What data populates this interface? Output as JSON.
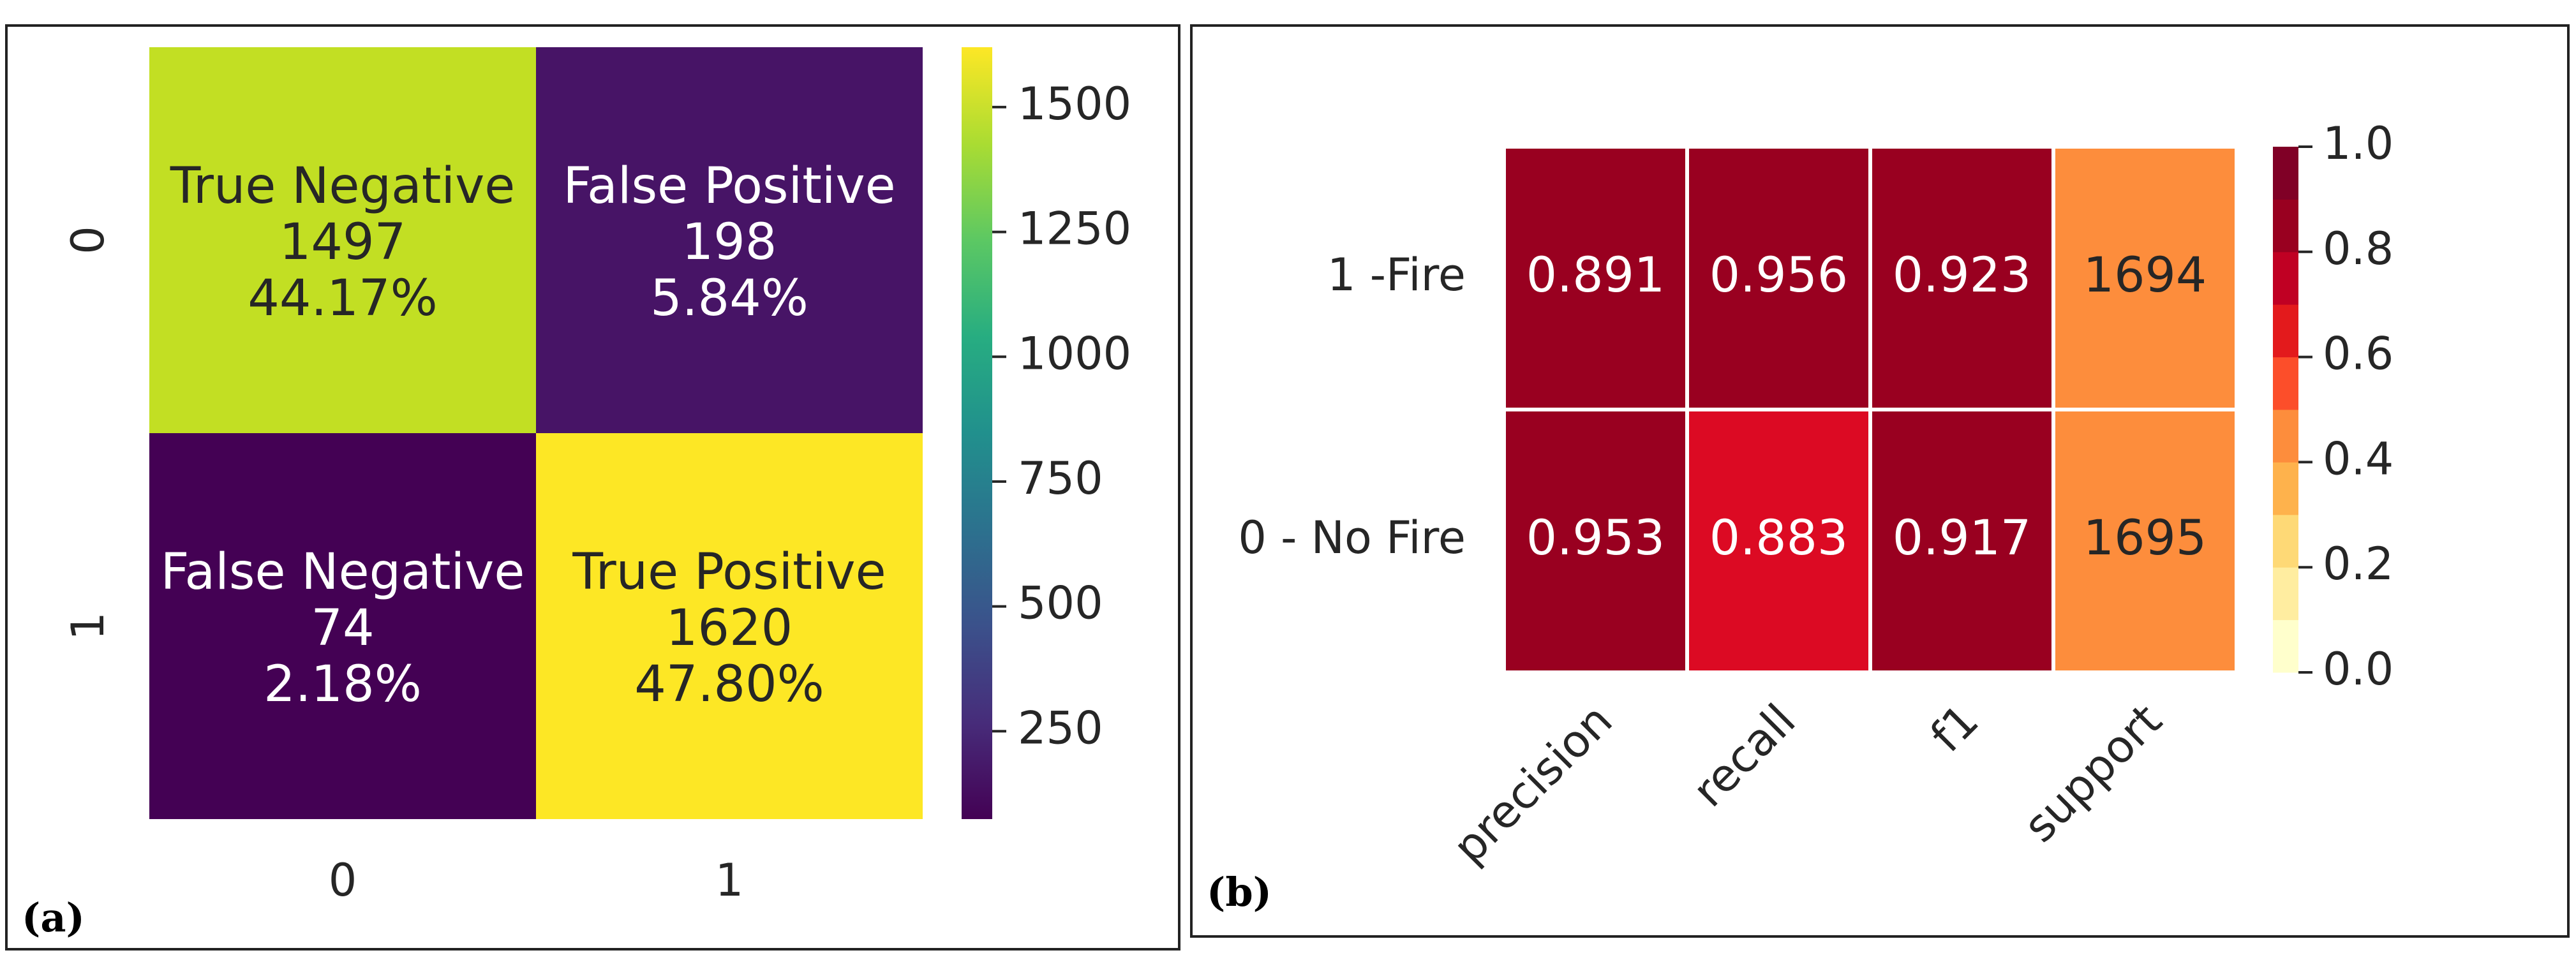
{
  "chart_data": [
    {
      "panel_label": "(a)",
      "type": "heatmap",
      "title": "",
      "x_tick_labels": [
        "0",
        "1"
      ],
      "y_tick_labels": [
        "0",
        "1"
      ],
      "cells": [
        {
          "row": 0,
          "col": 0,
          "name": "True Negative",
          "value": 1497,
          "value_text": "1497",
          "percent": "44.17%",
          "color": "#c2df23",
          "text_color": "#262626"
        },
        {
          "row": 0,
          "col": 1,
          "name": "False Positive",
          "value": 198,
          "value_text": "198",
          "percent": "5.84%",
          "color": "#471466",
          "text_color": "#ffffff"
        },
        {
          "row": 1,
          "col": 0,
          "name": "False Negative",
          "value": 74,
          "value_text": "74",
          "percent": "2.18%",
          "color": "#440154",
          "text_color": "#ffffff"
        },
        {
          "row": 1,
          "col": 1,
          "name": "True Positive",
          "value": 1620,
          "value_text": "1620",
          "percent": "47.80%",
          "color": "#fde725",
          "text_color": "#262626"
        }
      ],
      "colorbar": {
        "colormap": "viridis",
        "range": [
          74,
          1620
        ],
        "ticks": [
          250,
          500,
          750,
          1000,
          1250,
          1500
        ],
        "tick_labels": [
          "250",
          "500",
          "750",
          "1000",
          "1250",
          "1500"
        ]
      }
    },
    {
      "panel_label": "(b)",
      "type": "heatmap",
      "title": "",
      "x_tick_labels": [
        "precision",
        "recall",
        "f1",
        "support"
      ],
      "y_tick_labels": [
        "1 -Fire",
        "0 - No Fire"
      ],
      "cells": [
        {
          "row": 0,
          "col": 0,
          "value": 0.891,
          "value_text": "0.891",
          "color": "#990020",
          "text_color": "#ffffff"
        },
        {
          "row": 0,
          "col": 1,
          "value": 0.956,
          "value_text": "0.956",
          "color": "#990020",
          "text_color": "#ffffff"
        },
        {
          "row": 0,
          "col": 2,
          "value": 0.923,
          "value_text": "0.923",
          "color": "#990020",
          "text_color": "#ffffff"
        },
        {
          "row": 0,
          "col": 3,
          "value": 1694,
          "value_text": "1694",
          "color": "#fd8d3c",
          "text_color": "#262626"
        },
        {
          "row": 1,
          "col": 0,
          "value": 0.953,
          "value_text": "0.953",
          "color": "#990020",
          "text_color": "#ffffff"
        },
        {
          "row": 1,
          "col": 1,
          "value": 0.883,
          "value_text": "0.883",
          "color": "#dc0a23",
          "text_color": "#ffffff"
        },
        {
          "row": 1,
          "col": 2,
          "value": 0.917,
          "value_text": "0.917",
          "color": "#990020",
          "text_color": "#ffffff"
        },
        {
          "row": 1,
          "col": 3,
          "value": 1695,
          "value_text": "1695",
          "color": "#fd8d3c",
          "text_color": "#262626"
        }
      ],
      "colorbar": {
        "colormap": "YlOrRd (10 discrete levels)",
        "range": [
          0.0,
          1.0
        ],
        "levels": [
          "#ffffcc",
          "#ffeda0",
          "#fed976",
          "#feb24c",
          "#fd8d3c",
          "#fc4e2a",
          "#e31a1c",
          "#c00023",
          "#990020",
          "#800026"
        ],
        "ticks": [
          0.0,
          0.2,
          0.4,
          0.6,
          0.8,
          1.0
        ],
        "tick_labels": [
          "0.0",
          "0.2",
          "0.4",
          "0.6",
          "0.8",
          "1.0"
        ]
      }
    }
  ]
}
